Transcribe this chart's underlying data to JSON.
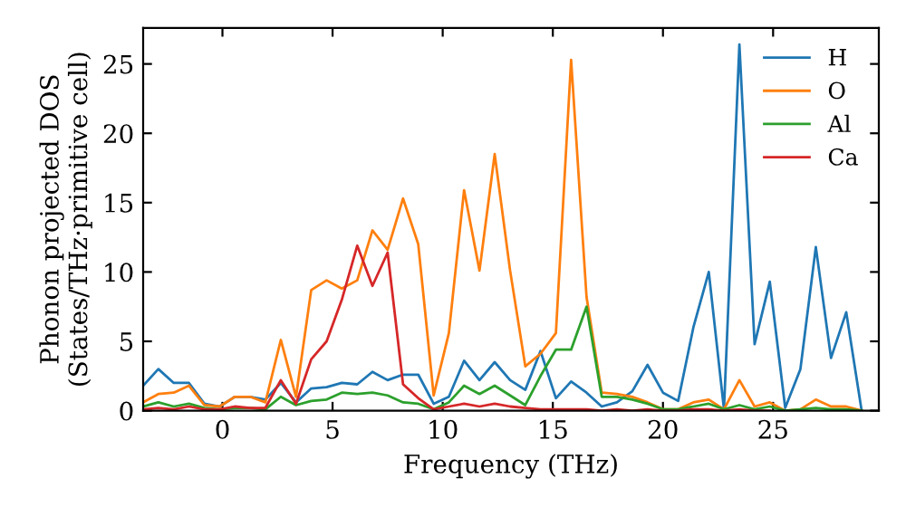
{
  "chart_data": {
    "type": "line",
    "xlabel": "Frequency (THz)",
    "ylabel": "Phonon projected DOS\n(States/THz·primitive cell)",
    "x": [
      -3.6,
      -2.91,
      -2.21,
      -1.52,
      -0.82,
      -0.13,
      0.56,
      1.26,
      1.95,
      2.65,
      3.34,
      4.03,
      4.73,
      5.42,
      6.12,
      6.81,
      7.5,
      8.2,
      8.89,
      9.59,
      10.28,
      10.97,
      11.67,
      12.36,
      13.06,
      13.75,
      14.44,
      15.14,
      15.83,
      16.53,
      17.22,
      17.91,
      18.61,
      19.3,
      20.0,
      20.69,
      21.38,
      22.08,
      22.77,
      23.47,
      24.16,
      24.85,
      25.55,
      26.24,
      26.94,
      27.63,
      28.32,
      29.02
    ],
    "series": [
      {
        "name": "H",
        "color": "#1f77b4",
        "values": [
          1.8,
          3.0,
          2.0,
          2.0,
          0.5,
          0.3,
          1.0,
          1.0,
          0.8,
          2.0,
          0.6,
          1.6,
          1.7,
          2.0,
          1.9,
          2.8,
          2.2,
          2.6,
          2.6,
          0.5,
          1.0,
          3.6,
          2.2,
          3.5,
          2.2,
          1.5,
          4.3,
          0.9,
          2.1,
          1.3,
          0.3,
          0.6,
          1.4,
          3.3,
          1.3,
          0.7,
          6.0,
          10.0,
          0.1,
          26.4,
          4.8,
          9.3,
          0.2,
          3.0,
          11.8,
          3.8,
          7.1,
          0.0
        ]
      },
      {
        "name": "O",
        "color": "#ff7f0e",
        "values": [
          0.6,
          1.2,
          1.3,
          1.8,
          0.4,
          0.3,
          1.0,
          1.0,
          0.6,
          5.1,
          1.0,
          8.7,
          9.4,
          8.8,
          9.4,
          13.0,
          11.6,
          15.3,
          12.0,
          1.1,
          5.6,
          15.9,
          10.1,
          18.5,
          10.1,
          3.2,
          4.1,
          5.6,
          25.3,
          8.2,
          1.3,
          1.2,
          1.0,
          0.6,
          0.1,
          0.1,
          0.6,
          0.8,
          0.1,
          2.2,
          0.3,
          0.6,
          0.0,
          0.1,
          0.8,
          0.3,
          0.3,
          0.0
        ]
      },
      {
        "name": "Al",
        "color": "#2ca02c",
        "values": [
          0.3,
          0.6,
          0.3,
          0.5,
          0.2,
          0.1,
          0.2,
          0.2,
          0.1,
          1.0,
          0.4,
          0.7,
          0.8,
          1.3,
          1.2,
          1.3,
          1.1,
          0.6,
          0.5,
          0.1,
          0.6,
          1.8,
          1.2,
          1.8,
          1.1,
          0.4,
          2.5,
          4.4,
          4.4,
          7.5,
          1.0,
          1.0,
          0.8,
          0.5,
          0.1,
          0.1,
          0.3,
          0.5,
          0.1,
          0.4,
          0.1,
          0.3,
          0.0,
          0.1,
          0.2,
          0.1,
          0.1,
          0.0
        ]
      },
      {
        "name": "Ca",
        "color": "#d62728",
        "values": [
          0.1,
          0.2,
          0.1,
          0.3,
          0.1,
          0.1,
          0.3,
          0.2,
          0.2,
          2.2,
          0.5,
          3.7,
          5.0,
          8.0,
          11.9,
          9.0,
          11.4,
          1.9,
          0.9,
          0.1,
          0.3,
          0.5,
          0.3,
          0.5,
          0.3,
          0.2,
          0.1,
          0.1,
          0.1,
          0.1,
          0.0,
          0.1,
          0.0,
          0.1,
          0.0,
          0.0,
          0.1,
          0.1,
          0.0,
          0.1,
          0.0,
          0.0,
          null,
          null,
          null,
          null,
          null,
          null
        ]
      }
    ],
    "xlim": [
      -3.6,
      29.8
    ],
    "ylim": [
      0,
      27.6
    ],
    "xticks": [
      0,
      5,
      10,
      15,
      20,
      25
    ],
    "yticks": [
      0,
      5,
      10,
      15,
      20,
      25
    ],
    "grid": false,
    "legend": "top right",
    "marker": "none",
    "line_style": "solid"
  }
}
